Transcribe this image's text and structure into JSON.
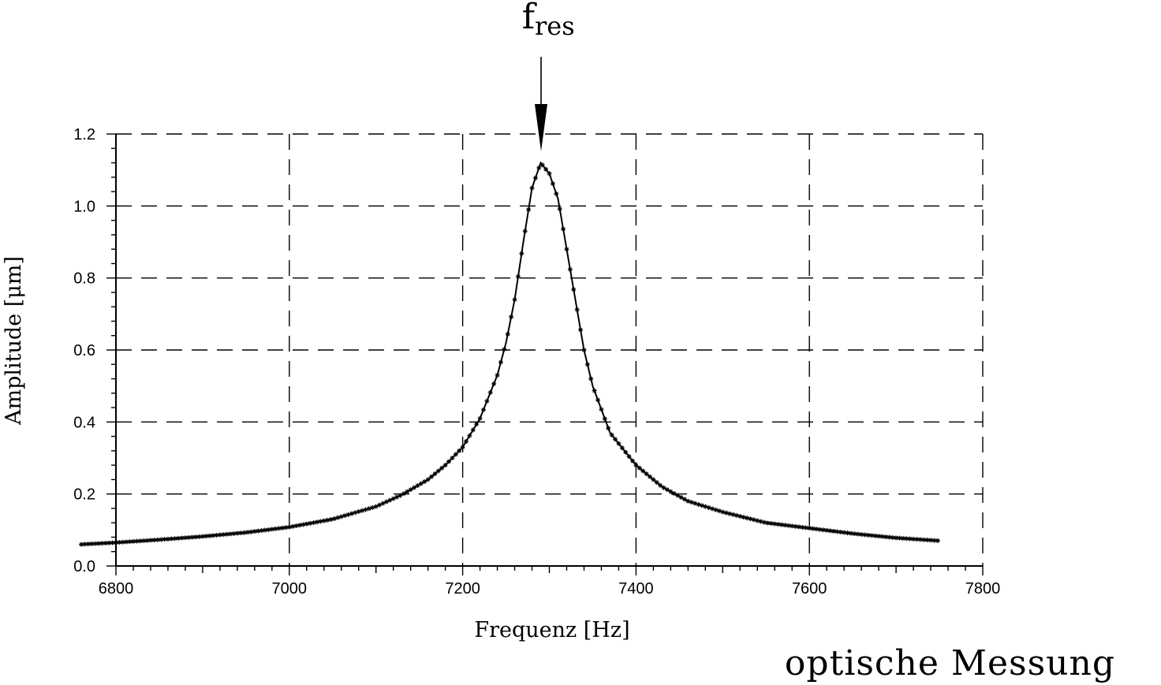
{
  "chart_data": {
    "type": "line",
    "title": "",
    "xlabel": "Frequenz [Hz]",
    "ylabel": "Amplitude [μm]",
    "xlim": [
      6800,
      7800
    ],
    "ylim": [
      0.0,
      1.2
    ],
    "x_ticks": [
      6800,
      7000,
      7200,
      7400,
      7600,
      7800
    ],
    "x_tick_labels": [
      "6800",
      "7000",
      "7200",
      "7400",
      "7600",
      "7800"
    ],
    "y_ticks": [
      0.0,
      0.2,
      0.4,
      0.6,
      0.8,
      1.0,
      1.2
    ],
    "y_tick_labels": [
      "0.0",
      "0.2",
      "0.4",
      "0.6",
      "0.8",
      "1.0",
      "1.2"
    ],
    "grid": true,
    "grid_style": "dashed",
    "marker": "asterisk",
    "series": [
      {
        "color": "#000000",
        "x": [
          6760,
          6800,
          6850,
          6900,
          6950,
          7000,
          7050,
          7100,
          7130,
          7160,
          7180,
          7200,
          7220,
          7240,
          7250,
          7260,
          7270,
          7280,
          7290,
          7300,
          7310,
          7320,
          7330,
          7340,
          7350,
          7370,
          7400,
          7430,
          7460,
          7500,
          7550,
          7600,
          7650,
          7700,
          7750
        ],
        "y": [
          0.06,
          0.065,
          0.073,
          0.082,
          0.093,
          0.108,
          0.13,
          0.165,
          0.198,
          0.24,
          0.28,
          0.33,
          0.41,
          0.53,
          0.62,
          0.74,
          0.9,
          1.05,
          1.12,
          1.09,
          1.02,
          0.88,
          0.74,
          0.6,
          0.5,
          0.37,
          0.28,
          0.22,
          0.18,
          0.15,
          0.12,
          0.105,
          0.09,
          0.078,
          0.07
        ]
      }
    ],
    "annotations": [
      {
        "text": "f",
        "subscript": "res",
        "x": 7295,
        "arrow": "down"
      }
    ]
  },
  "caption": "optische Messung"
}
